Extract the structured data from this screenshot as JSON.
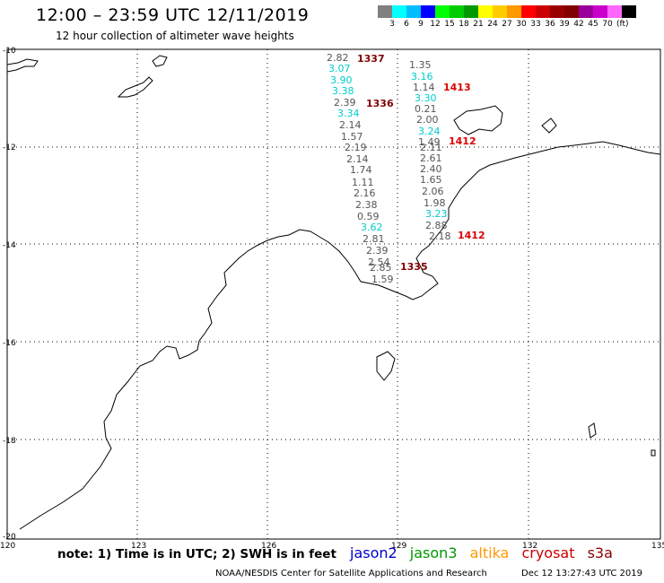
{
  "header": {
    "title": "12:00 – 23:59 UTC 12/11/2019",
    "subtitle": "12 hour collection of altimeter wave heights"
  },
  "colorbar": {
    "colors": [
      "#808080",
      "#00ffff",
      "#00bfff",
      "#0000ff",
      "#00ff00",
      "#00cc00",
      "#009900",
      "#ffff00",
      "#ffcc00",
      "#ff9900",
      "#ff0000",
      "#cc0000",
      "#990000",
      "#800000",
      "#990099",
      "#cc00cc",
      "#ff66ff",
      "#000000"
    ],
    "labels": [
      "3",
      "6",
      "9",
      "12",
      "15",
      "18",
      "21",
      "24",
      "27",
      "30",
      "33",
      "36",
      "39",
      "42",
      "45",
      "70"
    ],
    "unit": "(ft)"
  },
  "map": {
    "lon_labels": [
      "120",
      "123",
      "126",
      "129",
      "132",
      "135"
    ],
    "lat_labels": [
      "-10",
      "-12",
      "-14",
      "-16",
      "-18",
      "-20"
    ],
    "track_a": [
      "2.82",
      "3.07",
      "3.90",
      "3.38",
      "2.39",
      "3.34",
      "2.14",
      "1.57",
      "2.19",
      "2.14",
      "1.74",
      "1.11",
      "2.16",
      "2.38",
      "0.59",
      "3.62",
      "2.81",
      "2.39",
      "2.54",
      "2.85",
      "1.59"
    ],
    "track_b": [
      "1.35",
      "3.16",
      "1.14",
      "3.30",
      "0.21",
      "2.00",
      "3.24",
      "1.49",
      "2.11",
      "2.61",
      "2.40",
      "1.65",
      "2.06",
      "1.98",
      "3.23",
      "2.88",
      "2.18"
    ],
    "pass_times": [
      "1337",
      "1336",
      "1335",
      "1413",
      "1412",
      "1412"
    ]
  },
  "footer": {
    "note": "note:  1) Time is in UTC; 2) SWH is in feet",
    "satellites": [
      {
        "name": "jason2",
        "color": "#0000cc"
      },
      {
        "name": "jason3",
        "color": "#009900"
      },
      {
        "name": "altika",
        "color": "#ff9900"
      },
      {
        "name": "cryosat",
        "color": "#cc0000"
      },
      {
        "name": "s3a",
        "color": "#880000"
      }
    ],
    "credit": "NOAA/NESDIS Center for Satellite Applications and Research",
    "timestamp": "Dec 12 13:27:43 UTC 2019"
  }
}
